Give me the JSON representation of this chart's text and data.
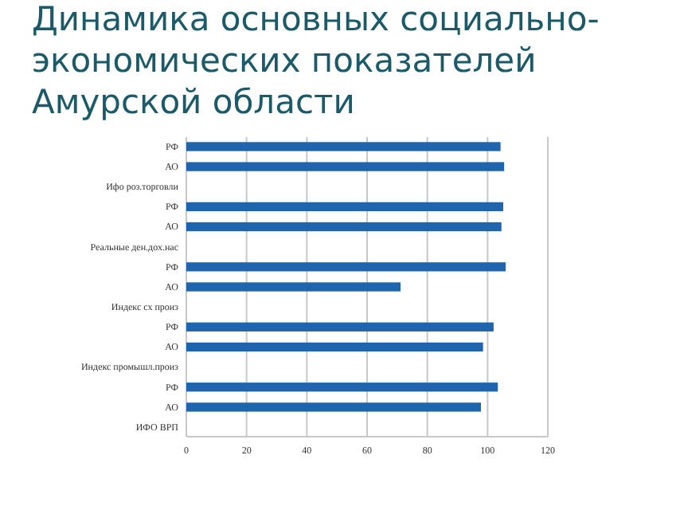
{
  "chart_data": {
    "type": "bar",
    "orientation": "horizontal",
    "title": "Динамика основных социально-экономических показателей Амурской области",
    "categories": [
      "РФ",
      "АО",
      "Ифо роз.торговли",
      "РФ",
      "АО",
      "Реальные ден.дох.нас",
      "РФ",
      "АО",
      "Индекс сх произ",
      "РФ",
      "АО",
      "Индекс промышл.произ",
      "РФ",
      "АО",
      "ИФО ВРП"
    ],
    "values": [
      104.3,
      105.5,
      null,
      105.2,
      104.6,
      null,
      106,
      71.1,
      null,
      102,
      98.5,
      null,
      103.4,
      97.8,
      null
    ],
    "color": "#1f65ad",
    "xlim": [
      0,
      120
    ],
    "xticks": [
      0,
      20,
      40,
      60,
      80,
      100,
      120
    ],
    "grid": "x"
  }
}
